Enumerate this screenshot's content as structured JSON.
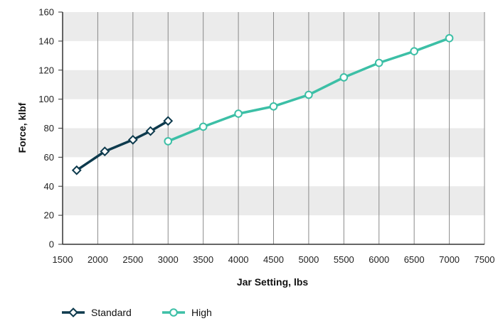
{
  "chart_data": {
    "type": "line",
    "xlabel": "Jar Setting, lbs",
    "ylabel": "Force, klbf",
    "xlim": [
      1500,
      7500
    ],
    "ylim": [
      0,
      160
    ],
    "xticks": [
      "1500",
      "2000",
      "2500",
      "3000",
      "3500",
      "4000",
      "4500",
      "5000",
      "5500",
      "6000",
      "6500",
      "7000",
      "7500"
    ],
    "yticks": [
      "0",
      "20",
      "40",
      "60",
      "80",
      "100",
      "120",
      "140",
      "160"
    ],
    "grid": {
      "vertical": true,
      "horizontal_bands": true
    },
    "legend_position": "bottom-left",
    "series": [
      {
        "name": "Standard",
        "color": "#0d3a4d",
        "marker": "diamond",
        "points": [
          [
            1700,
            51
          ],
          [
            2100,
            64
          ],
          [
            2500,
            72
          ],
          [
            2750,
            78
          ],
          [
            3000,
            85
          ]
        ]
      },
      {
        "name": "High",
        "color": "#3cbfa6",
        "marker": "circle",
        "points": [
          [
            3000,
            71
          ],
          [
            3500,
            81
          ],
          [
            4000,
            90
          ],
          [
            4500,
            95
          ],
          [
            5000,
            103
          ],
          [
            5500,
            115
          ],
          [
            6000,
            125
          ],
          [
            6500,
            133
          ],
          [
            7000,
            142
          ]
        ]
      }
    ]
  }
}
